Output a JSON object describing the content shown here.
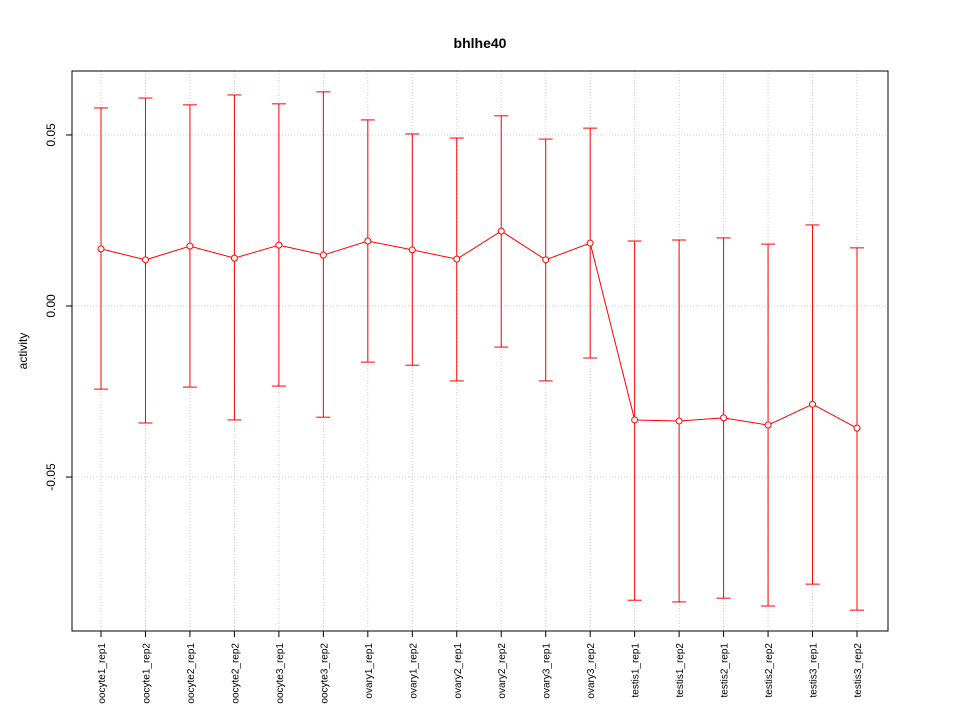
{
  "chart_data": {
    "type": "line",
    "title": "bhlhe40",
    "xlabel": "",
    "ylabel": "activity",
    "ylim": [
      -0.095,
      0.0687
    ],
    "yticks": [
      -0.05,
      0.0,
      0.05
    ],
    "ytick_labels": [
      "-0.05",
      "0.00",
      "0.05"
    ],
    "grid": true,
    "color": "#ff0000",
    "categories": [
      "oocyte1_rep1",
      "oocyte1_rep2",
      "oocyte2_rep1",
      "oocyte2_rep2",
      "oocyte3_rep1",
      "oocyte3_rep2",
      "ovary1_rep1",
      "ovary1_rep2",
      "ovary2_rep1",
      "ovary2_rep2",
      "ovary3_rep1",
      "ovary3_rep2",
      "testis1_rep1",
      "testis1_rep2",
      "testis2_rep1",
      "testis2_rep2",
      "testis3_rep1",
      "testis3_rep2"
    ],
    "values": [
      0.0167,
      0.0135,
      0.0175,
      0.014,
      0.0178,
      0.0149,
      0.019,
      0.0164,
      0.0137,
      0.0219,
      0.0135,
      0.0184,
      -0.0333,
      -0.0336,
      -0.0327,
      -0.0348,
      -0.0287,
      -0.0357
    ],
    "upper": [
      0.0579,
      0.0608,
      0.0588,
      0.0617,
      0.0591,
      0.0626,
      0.0544,
      0.0503,
      0.0491,
      0.0556,
      0.0488,
      0.052,
      0.019,
      0.0193,
      0.0199,
      0.0181,
      0.0237,
      0.017
    ],
    "lower": [
      -0.0243,
      -0.0342,
      -0.0237,
      -0.0333,
      -0.0234,
      -0.0325,
      -0.0164,
      -0.0173,
      -0.0219,
      -0.012,
      -0.0219,
      -0.0152,
      -0.086,
      -0.0865,
      -0.0854,
      -0.0877,
      -0.0813,
      -0.0889
    ]
  }
}
